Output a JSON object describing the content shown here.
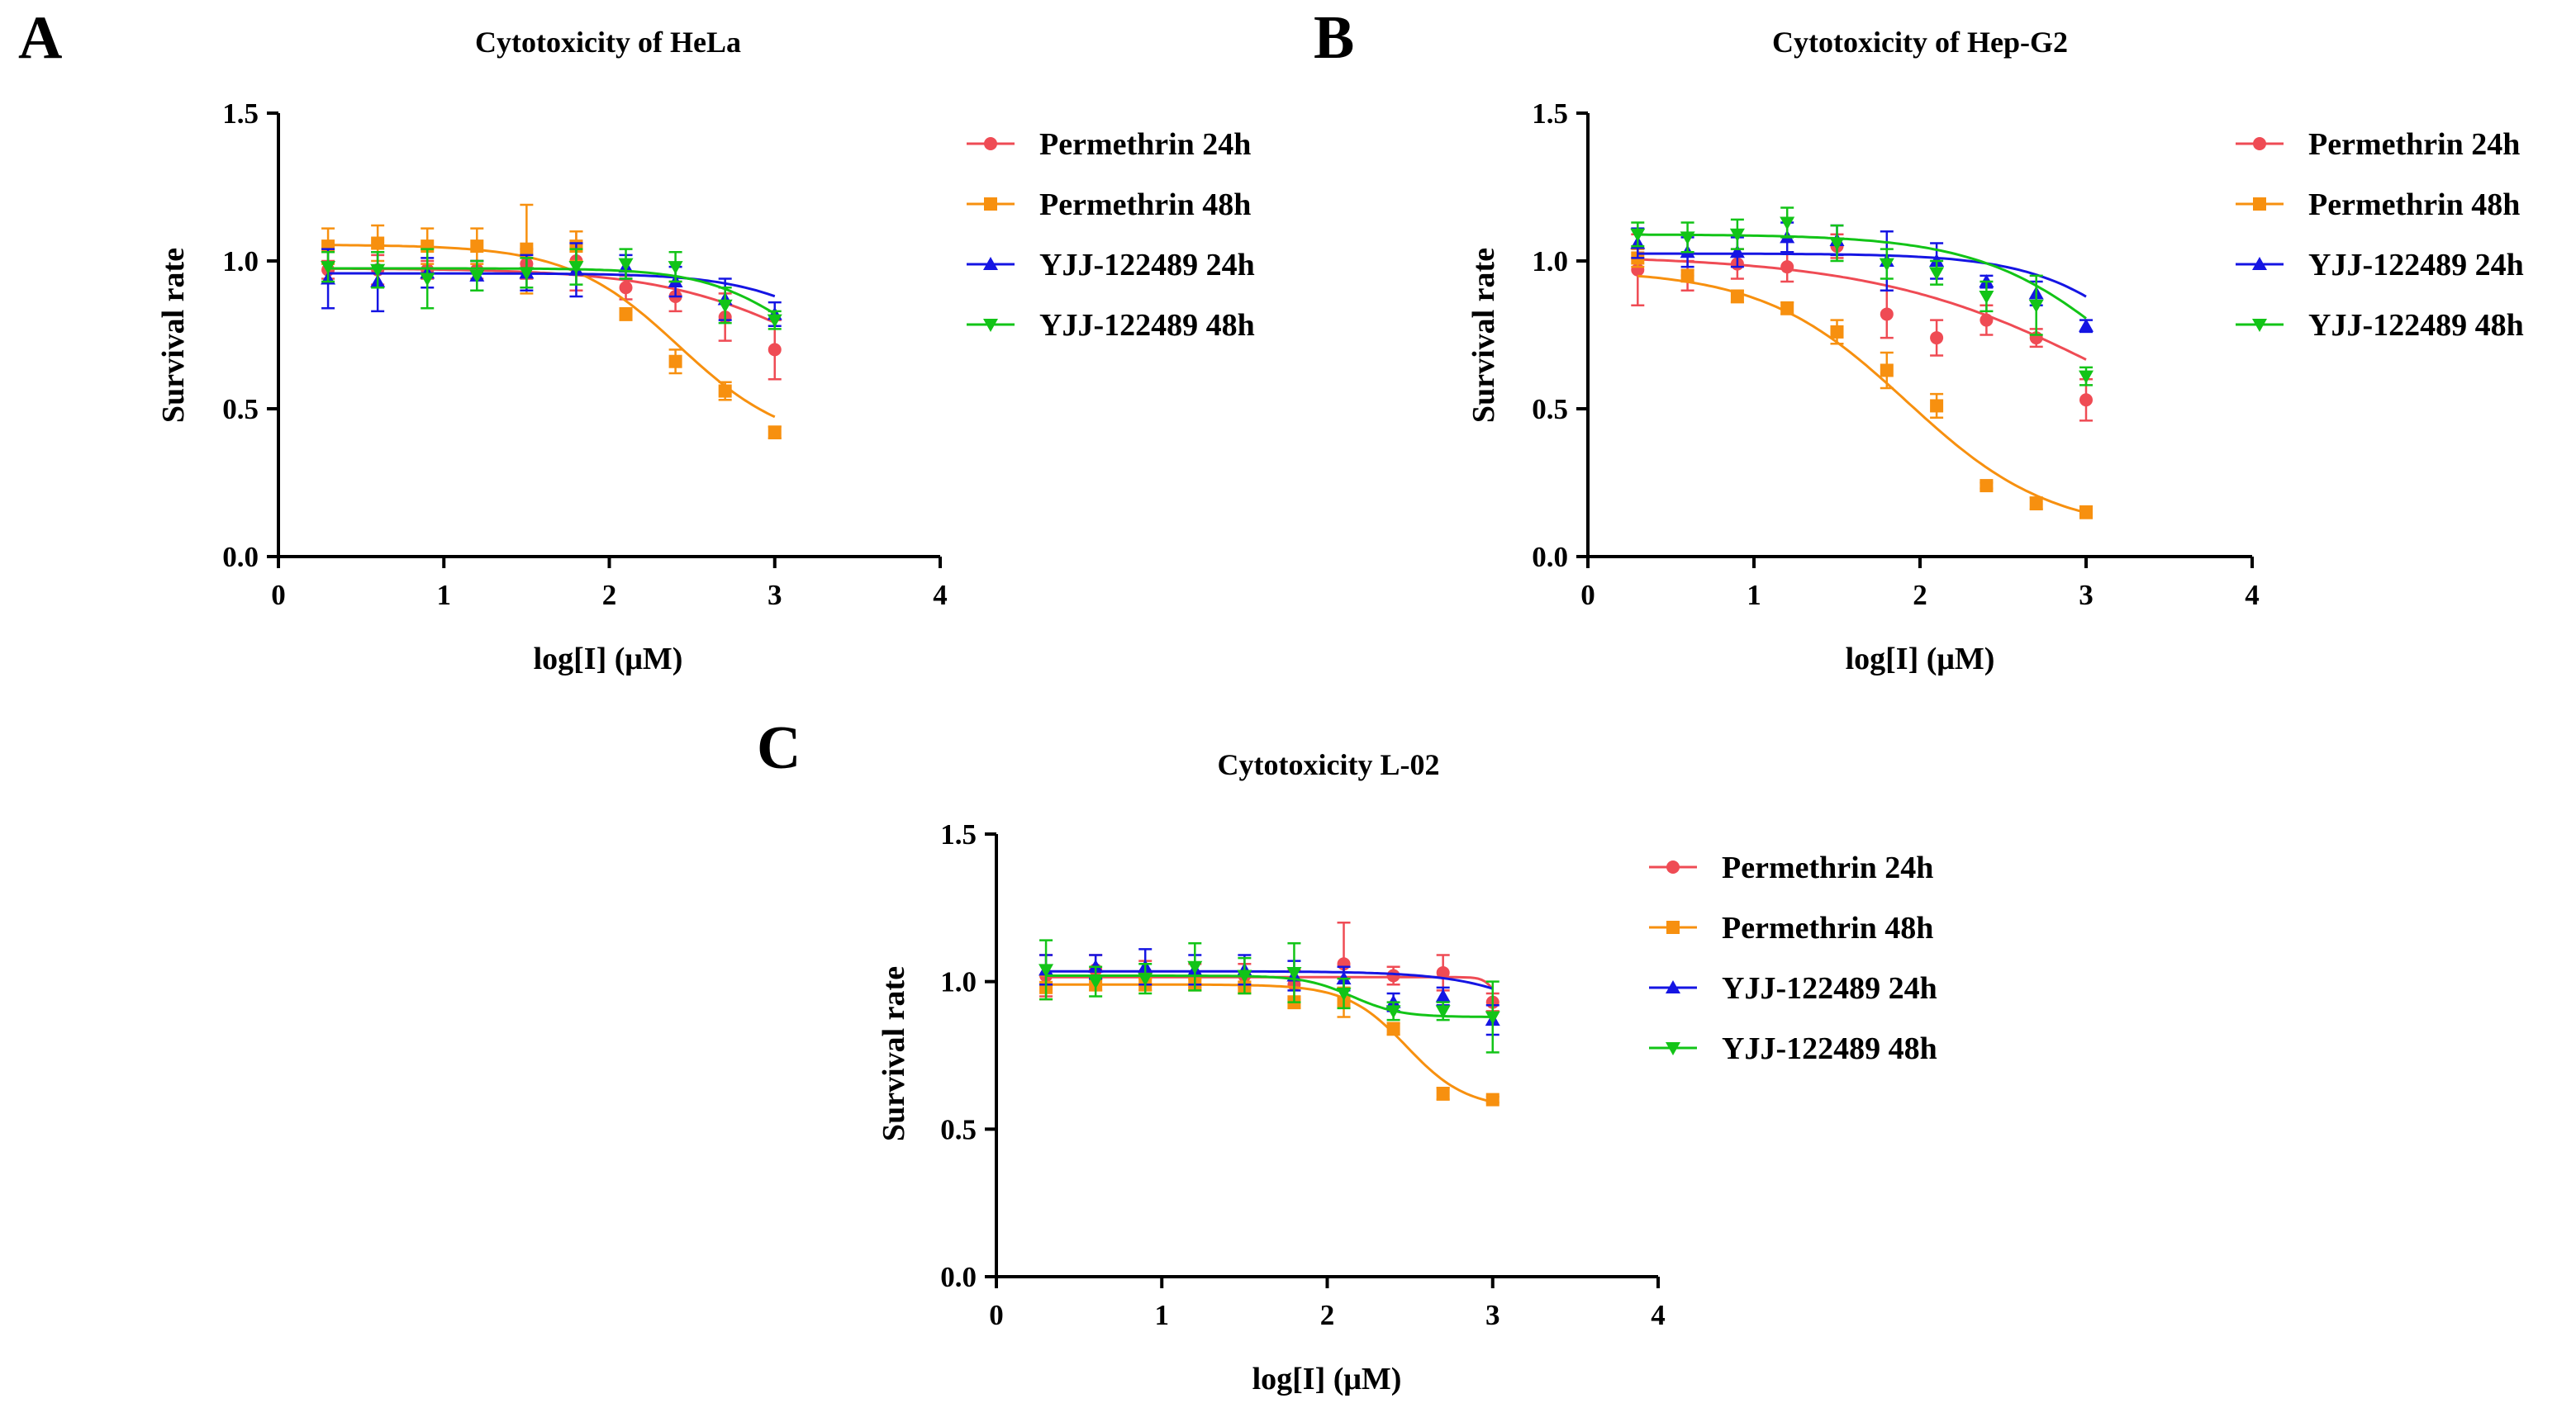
{
  "figure": {
    "series_styles": [
      {
        "name": "Permethrin 24h",
        "color": "#ef4b54",
        "marker": "circle"
      },
      {
        "name": "Permethrin 48h",
        "color": "#f7900f",
        "marker": "square"
      },
      {
        "name": "YJJ-122489 24h",
        "color": "#1515e3",
        "marker": "triangle-up"
      },
      {
        "name": "YJJ-122489 48h",
        "color": "#12c417",
        "marker": "triangle-down"
      }
    ]
  },
  "chart_data": [
    {
      "panel": "A",
      "type": "scatter",
      "title": "Cytotoxicity of HeLa",
      "xlabel": "log[I] (μM)",
      "ylabel": "Survival rate",
      "xlim": [
        0,
        4
      ],
      "ylim": [
        0,
        1.5
      ],
      "xticks": [
        "0",
        "1",
        "2",
        "3",
        "4"
      ],
      "yticks": [
        "0.0",
        "0.5",
        "1.0",
        "1.5"
      ],
      "legend_position": "right",
      "x": [
        0.3,
        0.6,
        0.9,
        1.2,
        1.5,
        1.8,
        2.1,
        2.4,
        2.7,
        3.0
      ],
      "series": [
        {
          "name": "Permethrin 24h",
          "values": [
            0.97,
            0.97,
            0.97,
            0.97,
            0.99,
            1.0,
            0.91,
            0.88,
            0.81,
            0.7
          ],
          "errors": [
            0.03,
            0.05,
            0.03,
            0.03,
            0.05,
            0.1,
            0.04,
            0.05,
            0.08,
            0.1
          ],
          "fit": {
            "top": 0.975,
            "bottom": 0.45,
            "logIC50": 3.3,
            "hill": 0.9
          }
        },
        {
          "name": "Permethrin 48h",
          "values": [
            1.05,
            1.06,
            1.05,
            1.05,
            1.04,
            1.05,
            0.82,
            0.66,
            0.56,
            0.42
          ],
          "errors": [
            0.06,
            0.06,
            0.06,
            0.06,
            0.15,
            0.05,
            0.02,
            0.04,
            0.03,
            0.02
          ],
          "fit": {
            "top": 1.055,
            "bottom": 0.37,
            "logIC50": 2.42,
            "hill": 1.3
          }
        },
        {
          "name": "YJJ-122489 24h",
          "values": [
            0.94,
            0.93,
            0.96,
            0.95,
            0.96,
            0.97,
            0.98,
            0.93,
            0.87,
            0.82
          ],
          "errors": [
            0.1,
            0.1,
            0.05,
            0.05,
            0.06,
            0.09,
            0.04,
            0.05,
            0.07,
            0.04
          ],
          "fit": {
            "top": 0.958,
            "bottom": 0.6,
            "logIC50": 3.4,
            "hill": 1.4
          }
        },
        {
          "name": "YJJ-122489 48h",
          "values": [
            0.98,
            0.97,
            0.94,
            0.95,
            0.96,
            0.98,
            0.99,
            0.98,
            0.85,
            0.8
          ],
          "errors": [
            0.05,
            0.06,
            0.1,
            0.05,
            0.05,
            0.06,
            0.05,
            0.05,
            0.06,
            0.03
          ],
          "fit": {
            "top": 0.975,
            "bottom": 0.6,
            "logIC50": 3.1,
            "hill": 1.6
          }
        }
      ]
    },
    {
      "panel": "B",
      "type": "scatter",
      "title": "Cytotoxicity of Hep-G2",
      "xlabel": "log[I] (μM)",
      "ylabel": "Survival rate",
      "xlim": [
        0,
        4
      ],
      "ylim": [
        0,
        1.5
      ],
      "xticks": [
        "0",
        "1",
        "2",
        "3",
        "4"
      ],
      "yticks": [
        "0.0",
        "0.5",
        "1.0",
        "1.5"
      ],
      "legend_position": "right",
      "x": [
        0.3,
        0.6,
        0.9,
        1.2,
        1.5,
        1.8,
        2.1,
        2.4,
        2.7,
        3.0
      ],
      "series": [
        {
          "name": "Permethrin 24h",
          "values": [
            0.97,
            0.95,
            0.99,
            0.98,
            1.05,
            0.82,
            0.74,
            0.8,
            0.74,
            0.53
          ],
          "errors": [
            0.12,
            0.05,
            0.05,
            0.05,
            0.04,
            0.08,
            0.06,
            0.05,
            0.03,
            0.07
          ],
          "fit": {
            "top": 1.02,
            "bottom": 0.2,
            "logIC50": 3.2,
            "hill": 0.6
          }
        },
        {
          "name": "Permethrin 48h",
          "values": [
            1.01,
            0.95,
            0.88,
            0.84,
            0.76,
            0.63,
            0.51,
            0.24,
            0.18,
            0.15
          ],
          "errors": [
            0.03,
            0.02,
            0.02,
            0.02,
            0.04,
            0.06,
            0.04,
            0.01,
            0.02,
            0.02
          ],
          "fit": {
            "top": 0.97,
            "bottom": 0.08,
            "logIC50": 1.92,
            "hill": 1.0
          }
        },
        {
          "name": "YJJ-122489 24h",
          "values": [
            1.06,
            1.03,
            1.03,
            1.08,
            1.07,
            1.0,
            1.0,
            0.93,
            0.89,
            0.78
          ],
          "errors": [
            0.05,
            0.05,
            0.05,
            0.05,
            0.05,
            0.1,
            0.06,
            0.02,
            0.04,
            0.02
          ],
          "fit": {
            "top": 1.025,
            "bottom": 0.3,
            "logIC50": 3.5,
            "hill": 1.2
          }
        },
        {
          "name": "YJJ-122489 48h",
          "values": [
            1.09,
            1.08,
            1.09,
            1.13,
            1.06,
            0.99,
            0.96,
            0.88,
            0.85,
            0.61
          ],
          "errors": [
            0.04,
            0.05,
            0.05,
            0.05,
            0.06,
            0.05,
            0.04,
            0.05,
            0.1,
            0.03
          ],
          "fit": {
            "top": 1.09,
            "bottom": 0.3,
            "logIC50": 3.25,
            "hill": 1.0
          }
        }
      ]
    },
    {
      "panel": "C",
      "type": "scatter",
      "title": "Cytotoxicity L-02",
      "xlabel": "log[I] (μM)",
      "ylabel": "Survival rate",
      "xlim": [
        0,
        4
      ],
      "ylim": [
        0,
        1.5
      ],
      "xticks": [
        "0",
        "1",
        "2",
        "3",
        "4"
      ],
      "yticks": [
        "0.0",
        "0.5",
        "1.0",
        "1.5"
      ],
      "legend_position": "right",
      "x": [
        0.3,
        0.6,
        0.9,
        1.2,
        1.5,
        1.8,
        2.1,
        2.4,
        2.7,
        3.0
      ],
      "series": [
        {
          "name": "Permethrin 24h",
          "values": [
            1.02,
            1.04,
            1.03,
            1.02,
            1.02,
            0.99,
            1.06,
            1.02,
            1.03,
            0.93
          ],
          "errors": [
            0.07,
            0.05,
            0.04,
            0.04,
            0.04,
            0.05,
            0.14,
            0.03,
            0.06,
            0.03
          ],
          "fit": {
            "top": 1.015,
            "bottom": 0.88,
            "logIC50": 3.03,
            "hill": 12
          }
        },
        {
          "name": "Permethrin 48h",
          "values": [
            0.98,
            0.99,
            0.99,
            0.99,
            0.98,
            0.93,
            0.93,
            0.84,
            0.62,
            0.6
          ],
          "errors": [
            0.04,
            0.02,
            0.02,
            0.02,
            0.02,
            0.02,
            0.05,
            0.02,
            0.02,
            0.01
          ],
          "fit": {
            "top": 0.99,
            "bottom": 0.57,
            "logIC50": 2.48,
            "hill": 2.4
          }
        },
        {
          "name": "YJJ-122489 24h",
          "values": [
            1.04,
            1.05,
            1.05,
            1.04,
            1.04,
            1.02,
            1.01,
            0.93,
            0.95,
            0.87
          ],
          "errors": [
            0.05,
            0.04,
            0.06,
            0.05,
            0.05,
            0.05,
            0.04,
            0.03,
            0.03,
            0.05
          ],
          "fit": {
            "top": 1.035,
            "bottom": 0.2,
            "logIC50": 3.8,
            "hill": 1.4
          }
        },
        {
          "name": "YJJ-122489 48h",
          "values": [
            1.04,
            1.0,
            1.01,
            1.05,
            1.02,
            1.03,
            0.96,
            0.9,
            0.9,
            0.88
          ],
          "errors": [
            0.1,
            0.05,
            0.05,
            0.08,
            0.06,
            0.1,
            0.05,
            0.03,
            0.03,
            0.12
          ],
          "fit": {
            "top": 1.02,
            "bottom": 0.88,
            "logIC50": 2.15,
            "hill": 3.0
          }
        }
      ]
    }
  ]
}
